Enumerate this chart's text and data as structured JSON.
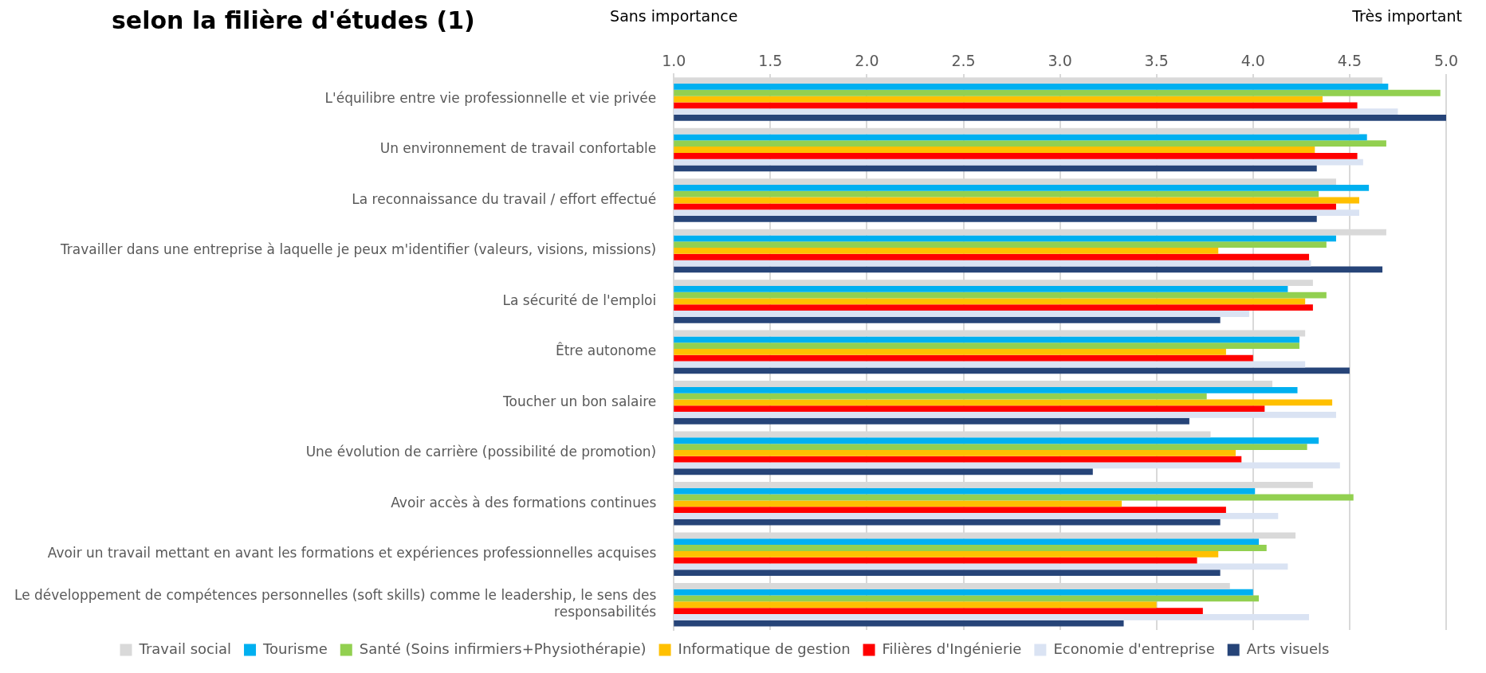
{
  "chart_data": {
    "type": "bar",
    "orientation": "horizontal",
    "title": "selon la filière d'études (1)",
    "annotations": [
      "Sans importance",
      "Très important"
    ],
    "categories": [
      "L'équilibre entre vie professionnelle et vie privée",
      "Un environnement de travail confortable",
      "La reconnaissance du travail / effort effectué",
      "Travailler dans une entreprise à laquelle je peux m'identifier (valeurs, visions, missions)",
      "La sécurité de l'emploi",
      "Être autonome",
      "Toucher un bon salaire",
      "Une évolution de carrière (possibilité de promotion)",
      "Avoir accès à des formations continues",
      "Avoir un travail mettant en avant les formations et expériences professionnelles acquises",
      "Le développement de compétences personnelles (soft skills) comme le leadership, le sens des responsabilités"
    ],
    "series": [
      {
        "name": "Travail social",
        "color": "#d9d9d9",
        "values": [
          4.67,
          4.55,
          4.43,
          4.69,
          4.31,
          4.27,
          4.1,
          3.78,
          4.31,
          4.22,
          3.88
        ]
      },
      {
        "name": "Tourisme",
        "color": "#00b0f0",
        "values": [
          4.7,
          4.59,
          4.6,
          4.43,
          4.18,
          4.24,
          4.23,
          4.34,
          4.01,
          4.03,
          4.0
        ]
      },
      {
        "name": "Santé (Soins infirmiers+Physiothérapie)",
        "color": "#92d050",
        "values": [
          4.97,
          4.69,
          4.34,
          4.38,
          4.38,
          4.24,
          3.76,
          4.28,
          4.52,
          4.07,
          4.03
        ]
      },
      {
        "name": "Informatique de gestion",
        "color": "#ffc000",
        "values": [
          4.36,
          4.32,
          4.55,
          3.82,
          4.27,
          3.86,
          4.41,
          3.91,
          3.32,
          3.82,
          3.5
        ]
      },
      {
        "name": "Filières d'Ingénierie",
        "color": "#ff0000",
        "values": [
          4.54,
          4.54,
          4.43,
          4.29,
          4.31,
          4.0,
          4.06,
          3.94,
          3.86,
          3.71,
          3.74
        ]
      },
      {
        "name": "Economie d'entreprise",
        "color": "#dae3f3",
        "values": [
          4.75,
          4.57,
          4.55,
          4.3,
          3.98,
          4.27,
          4.43,
          4.45,
          4.13,
          4.18,
          4.29
        ]
      },
      {
        "name": "Arts visuels",
        "color": "#264478",
        "values": [
          5.0,
          4.33,
          4.33,
          4.67,
          3.83,
          4.5,
          3.67,
          3.17,
          3.83,
          3.83,
          3.33
        ]
      }
    ],
    "xlim": [
      1,
      5
    ],
    "xticks": [
      {
        "value": 1,
        "label": "1.0"
      },
      {
        "value": 1.5,
        "label": "1.5"
      },
      {
        "value": 2,
        "label": "2.0"
      },
      {
        "value": 2.5,
        "label": "2.5"
      },
      {
        "value": 3,
        "label": "3.0"
      },
      {
        "value": 3.5,
        "label": "3.5"
      },
      {
        "value": 4,
        "label": "4.0"
      },
      {
        "value": 4.5,
        "label": "4.5"
      },
      {
        "value": 5,
        "label": "5.0"
      }
    ],
    "grid": "x",
    "legend": "bottom"
  }
}
